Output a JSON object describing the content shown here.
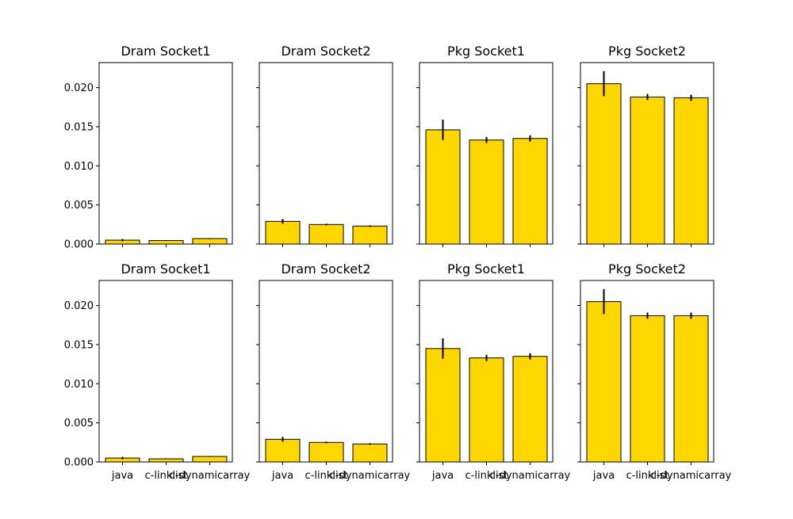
{
  "chart_data": [
    {
      "type": "bar",
      "title": "Dram Socket1",
      "categories": [
        "java",
        "c-linklist",
        "c-dynamicarray"
      ],
      "values": [
        0.0005,
        0.00045,
        0.0007
      ],
      "errors": [
        0.00015,
        5e-05,
        6e-05
      ],
      "ylim": [
        0,
        0.0232
      ],
      "yticks": [
        "0.000",
        "0.005",
        "0.010",
        "0.015",
        "0.020"
      ]
    },
    {
      "type": "bar",
      "title": "Dram Socket2",
      "categories": [
        "java",
        "c-linklist",
        "c-dynamicarray"
      ],
      "values": [
        0.0029,
        0.0025,
        0.0023
      ],
      "errors": [
        0.0003,
        0.0001,
        0.0001
      ],
      "ylim": [
        0,
        0.0232
      ],
      "yticks": [
        "0.000",
        "0.005",
        "0.010",
        "0.015",
        "0.020"
      ]
    },
    {
      "type": "bar",
      "title": "Pkg Socket1",
      "categories": [
        "java",
        "c-linklist",
        "c-dynamicarray"
      ],
      "values": [
        0.0146,
        0.0133,
        0.0135
      ],
      "errors": [
        0.0013,
        0.0004,
        0.0004
      ],
      "ylim": [
        0,
        0.0232
      ],
      "yticks": [
        "0.000",
        "0.005",
        "0.010",
        "0.015",
        "0.020"
      ]
    },
    {
      "type": "bar",
      "title": "Pkg Socket2",
      "categories": [
        "java",
        "c-linklist",
        "c-dynamicarray"
      ],
      "values": [
        0.0205,
        0.0188,
        0.0187
      ],
      "errors": [
        0.0016,
        0.0004,
        0.0004
      ],
      "ylim": [
        0,
        0.0232
      ],
      "yticks": [
        "0.000",
        "0.005",
        "0.010",
        "0.015",
        "0.020"
      ]
    },
    {
      "type": "bar",
      "title": "Dram Socket1",
      "categories": [
        "java",
        "c-linklist",
        "c-dynamicarray"
      ],
      "values": [
        0.0005,
        0.0004,
        0.0007
      ],
      "errors": [
        0.00015,
        5e-05,
        6e-05
      ],
      "ylim": [
        0,
        0.0232
      ],
      "yticks": [
        "0.000",
        "0.005",
        "0.010",
        "0.015",
        "0.020"
      ],
      "xtick_labels": [
        "java",
        "c-linklist",
        "c-dynamicarray"
      ]
    },
    {
      "type": "bar",
      "title": "Dram Socket2",
      "categories": [
        "java",
        "c-linklist",
        "c-dynamicarray"
      ],
      "values": [
        0.0029,
        0.0025,
        0.0023
      ],
      "errors": [
        0.0003,
        0.0001,
        0.0001
      ],
      "ylim": [
        0,
        0.0232
      ],
      "yticks": [
        "0.000",
        "0.005",
        "0.010",
        "0.015",
        "0.020"
      ],
      "xtick_labels": [
        "java",
        "c-linklist",
        "c-dynamicarray"
      ]
    },
    {
      "type": "bar",
      "title": "Pkg Socket1",
      "categories": [
        "java",
        "c-linklist",
        "c-dynamicarray"
      ],
      "values": [
        0.0145,
        0.0133,
        0.0135
      ],
      "errors": [
        0.0013,
        0.0004,
        0.0004
      ],
      "ylim": [
        0,
        0.0232
      ],
      "yticks": [
        "0.000",
        "0.005",
        "0.010",
        "0.015",
        "0.020"
      ],
      "xtick_labels": [
        "java",
        "c-linklist",
        "c-dynamicarray"
      ]
    },
    {
      "type": "bar",
      "title": "Pkg Socket2",
      "categories": [
        "java",
        "c-linklist",
        "c-dynamicarray"
      ],
      "values": [
        0.0205,
        0.0187,
        0.0187
      ],
      "errors": [
        0.0016,
        0.0004,
        0.0004
      ],
      "ylim": [
        0,
        0.0232
      ],
      "yticks": [
        "0.000",
        "0.005",
        "0.010",
        "0.015",
        "0.020"
      ],
      "xtick_labels": [
        "java",
        "c-linklist",
        "c-dynamicarray"
      ]
    }
  ],
  "style": {
    "bar_color": "#ffd700",
    "edge_color": "#000000",
    "background": "#ffffff"
  }
}
